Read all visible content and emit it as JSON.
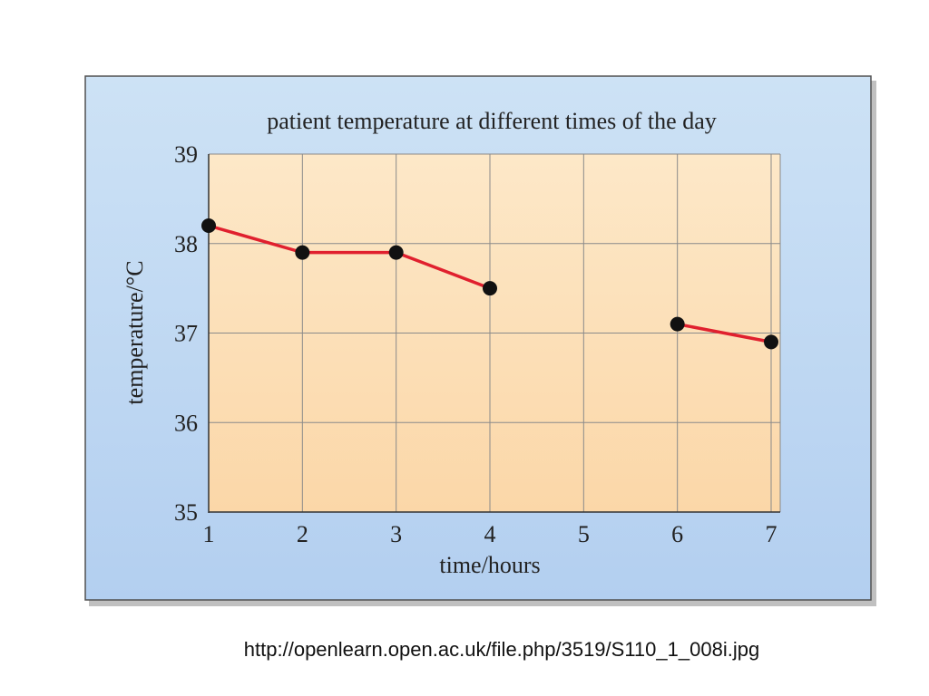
{
  "caption": "http://openlearn.open.ac.uk/file.php/3519/S110_1_008i.jpg",
  "colors": {
    "panel_bg": "#cfe3f5",
    "plot_bg": "#fde7c4",
    "line": "#e0202e",
    "marker": "#111111",
    "grid": "#8a8a8a"
  },
  "chart_data": {
    "type": "line",
    "title": "patient temperature at different times of the day",
    "xlabel": "time/hours",
    "ylabel": "temperature/°C",
    "xlim": [
      1,
      7
    ],
    "ylim": [
      35,
      39
    ],
    "x_ticks": [
      1,
      2,
      3,
      4,
      5,
      6,
      7
    ],
    "y_ticks": [
      35,
      36,
      37,
      38,
      39
    ],
    "grid": true,
    "legend": "none",
    "series": [
      {
        "points": [
          {
            "x": 1,
            "y": 38.2
          },
          {
            "x": 2,
            "y": 37.9
          },
          {
            "x": 3,
            "y": 37.9
          },
          {
            "x": 4,
            "y": 37.5
          }
        ]
      },
      {
        "points": [
          {
            "x": 6,
            "y": 37.1
          },
          {
            "x": 7,
            "y": 36.9
          }
        ]
      }
    ]
  }
}
